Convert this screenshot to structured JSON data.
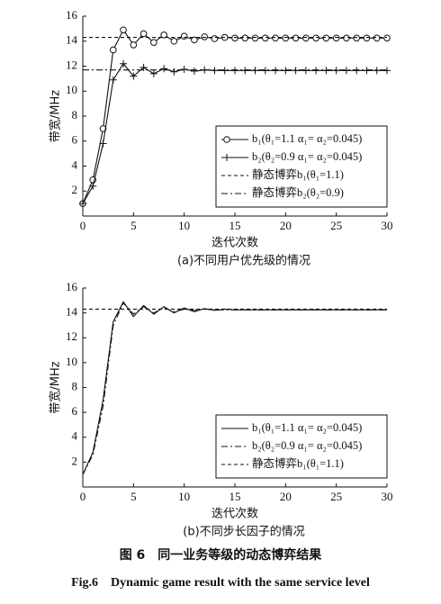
{
  "chart_data": [
    {
      "type": "line",
      "caption": "(a)不同用户优先级的情况",
      "x_label": "迭代次数",
      "y_label": "带宽/MHz",
      "xlim": [
        0,
        30
      ],
      "xticks": [
        0,
        5,
        10,
        15,
        20,
        25,
        30
      ],
      "ylim": [
        0,
        16
      ],
      "yticks": [
        2,
        4,
        6,
        8,
        10,
        12,
        14,
        16
      ],
      "legend": "lower right",
      "series": [
        {
          "name": "b₁(θ₁=1.1 α₁= α₂=0.045)",
          "color": "#111",
          "dash": "solid",
          "marker": "circle",
          "x": [
            0,
            1,
            2,
            3,
            4,
            5,
            6,
            7,
            8,
            9,
            10,
            11,
            12,
            13,
            14,
            15,
            16,
            17,
            18,
            19,
            20,
            21,
            22,
            23,
            24,
            25,
            26,
            27,
            28,
            29,
            30
          ],
          "values": [
            1.0,
            2.9,
            7.0,
            13.3,
            14.9,
            13.7,
            14.6,
            13.9,
            14.5,
            14.0,
            14.4,
            14.1,
            14.35,
            14.2,
            14.3,
            14.25,
            14.25,
            14.25,
            14.25,
            14.25,
            14.25,
            14.25,
            14.25,
            14.25,
            14.25,
            14.25,
            14.25,
            14.25,
            14.25,
            14.25,
            14.25
          ]
        },
        {
          "name": "b₂(θ₂=0.9 α₁= α₂=0.045)",
          "color": "#111",
          "dash": "solid",
          "marker": "plus",
          "x": [
            0,
            1,
            2,
            3,
            4,
            5,
            6,
            7,
            8,
            9,
            10,
            11,
            12,
            13,
            14,
            15,
            16,
            17,
            18,
            19,
            20,
            21,
            22,
            23,
            24,
            25,
            26,
            27,
            28,
            29,
            30
          ],
          "values": [
            1.0,
            2.4,
            5.8,
            10.9,
            12.2,
            11.2,
            11.9,
            11.4,
            11.8,
            11.55,
            11.75,
            11.6,
            11.7,
            11.65,
            11.65,
            11.65,
            11.65,
            11.65,
            11.65,
            11.65,
            11.65,
            11.65,
            11.65,
            11.65,
            11.65,
            11.65,
            11.65,
            11.65,
            11.65,
            11.65,
            11.65
          ]
        },
        {
          "name": "静态博弈b₁(θ₁=1.1)",
          "color": "#111",
          "dash": "dashed",
          "x": [
            0,
            30
          ],
          "values": [
            14.3,
            14.3
          ]
        },
        {
          "name": "静态博弈b₂(θ₂=0.9)",
          "color": "#111",
          "dash": "dashdot",
          "x": [
            0,
            30
          ],
          "values": [
            11.7,
            11.7
          ]
        }
      ]
    },
    {
      "type": "line",
      "caption": "(b)不同步长因子的情况",
      "x_label": "迭代次数",
      "y_label": "带宽/MHz",
      "xlim": [
        0,
        30
      ],
      "xticks": [
        0,
        5,
        10,
        15,
        20,
        25,
        30
      ],
      "ylim": [
        0,
        16
      ],
      "yticks": [
        2,
        4,
        6,
        8,
        10,
        12,
        14,
        16
      ],
      "legend": "lower right",
      "series": [
        {
          "name": "b₁(θ₁=1.1 α₁= α₂=0.045)",
          "color": "#111",
          "dash": "solid",
          "x": [
            0,
            1,
            2,
            3,
            4,
            5,
            6,
            7,
            8,
            9,
            10,
            11,
            12,
            13,
            14,
            15,
            16,
            17,
            18,
            19,
            20,
            21,
            22,
            23,
            24,
            25,
            26,
            27,
            28,
            29,
            30
          ],
          "values": [
            1.0,
            2.8,
            7.0,
            13.3,
            14.9,
            13.7,
            14.6,
            13.9,
            14.5,
            14.0,
            14.4,
            14.1,
            14.35,
            14.2,
            14.3,
            14.25,
            14.25,
            14.25,
            14.25,
            14.25,
            14.25,
            14.25,
            14.25,
            14.25,
            14.25,
            14.25,
            14.25,
            14.25,
            14.25,
            14.25,
            14.25
          ]
        },
        {
          "name": "b₂(θ₂=0.9 α₁= α₂=0.045)",
          "color": "#111",
          "dash": "dashdot",
          "x": [
            0,
            1,
            2,
            3,
            4,
            5,
            6,
            7,
            8,
            9,
            10,
            11,
            12,
            13,
            14,
            15,
            16,
            17,
            18,
            19,
            20,
            21,
            22,
            23,
            24,
            25,
            26,
            27,
            28,
            29,
            30
          ],
          "values": [
            1.0,
            2.6,
            6.5,
            13.0,
            14.8,
            13.9,
            14.5,
            14.0,
            14.4,
            14.1,
            14.3,
            14.2,
            14.3,
            14.25,
            14.25,
            14.25,
            14.25,
            14.25,
            14.25,
            14.25,
            14.25,
            14.25,
            14.25,
            14.25,
            14.25,
            14.25,
            14.25,
            14.25,
            14.25,
            14.25,
            14.25
          ]
        },
        {
          "name": "静态博弈b₁(θ₁=1.1)",
          "color": "#111",
          "dash": "dashed",
          "x": [
            0,
            30
          ],
          "values": [
            14.3,
            14.3
          ]
        }
      ]
    }
  ],
  "figure": {
    "caption_cn": "图 6　同一业务等级的动态博弈结果",
    "caption_en": "Fig.6　Dynamic game result with the same service level"
  }
}
